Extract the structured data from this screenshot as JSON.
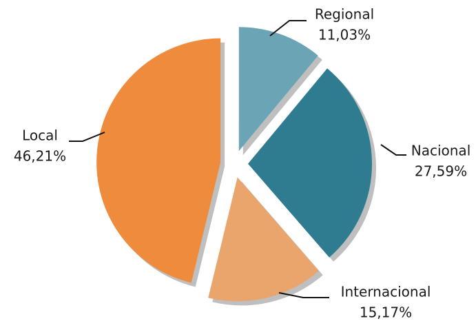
{
  "chart_data": {
    "type": "pie",
    "categories": [
      "Regional",
      "Nacional",
      "Internacional",
      "Local"
    ],
    "values": [
      11.03,
      27.59,
      15.17,
      46.21
    ],
    "value_labels": [
      "11,03%",
      "27,59%",
      "15,17%",
      "46,21%"
    ],
    "colors": [
      "#6ba4b5",
      "#2f7c90",
      "#e9a56b",
      "#ef8b3c"
    ]
  }
}
